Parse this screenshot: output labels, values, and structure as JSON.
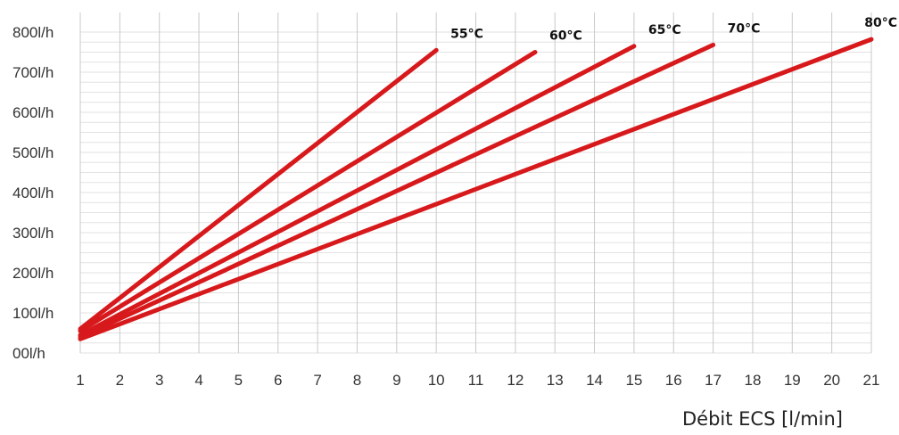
{
  "chart_data": {
    "type": "line",
    "title": "",
    "xlabel": "Débit ECS [l/min]",
    "ylabel": "",
    "x_ticks": [
      "1",
      "2",
      "3",
      "4",
      "5",
      "6",
      "7",
      "8",
      "9",
      "10",
      "11",
      "12",
      "13",
      "14",
      "15",
      "16",
      "17",
      "18",
      "19",
      "20",
      "21"
    ],
    "y_ticks": [
      "00l/h",
      "100l/h",
      "200l/h",
      "300l/h",
      "400l/h",
      "500l/h",
      "600l/h",
      "700l/h",
      "800l/h"
    ],
    "xlim": [
      1,
      21
    ],
    "ylim": [
      0,
      800
    ],
    "grid": "vertical",
    "line_color": "#d7191c",
    "series": [
      {
        "name": "55°C",
        "points": [
          [
            1,
            60
          ],
          [
            10,
            755
          ]
        ]
      },
      {
        "name": "60°C",
        "points": [
          [
            1,
            55
          ],
          [
            12.5,
            750
          ]
        ]
      },
      {
        "name": "65°C",
        "points": [
          [
            1,
            45
          ],
          [
            15,
            765
          ]
        ]
      },
      {
        "name": "70°C",
        "points": [
          [
            1,
            40
          ],
          [
            17,
            768
          ]
        ]
      },
      {
        "name": "80°C",
        "points": [
          [
            1,
            35
          ],
          [
            21,
            782
          ]
        ]
      }
    ]
  }
}
